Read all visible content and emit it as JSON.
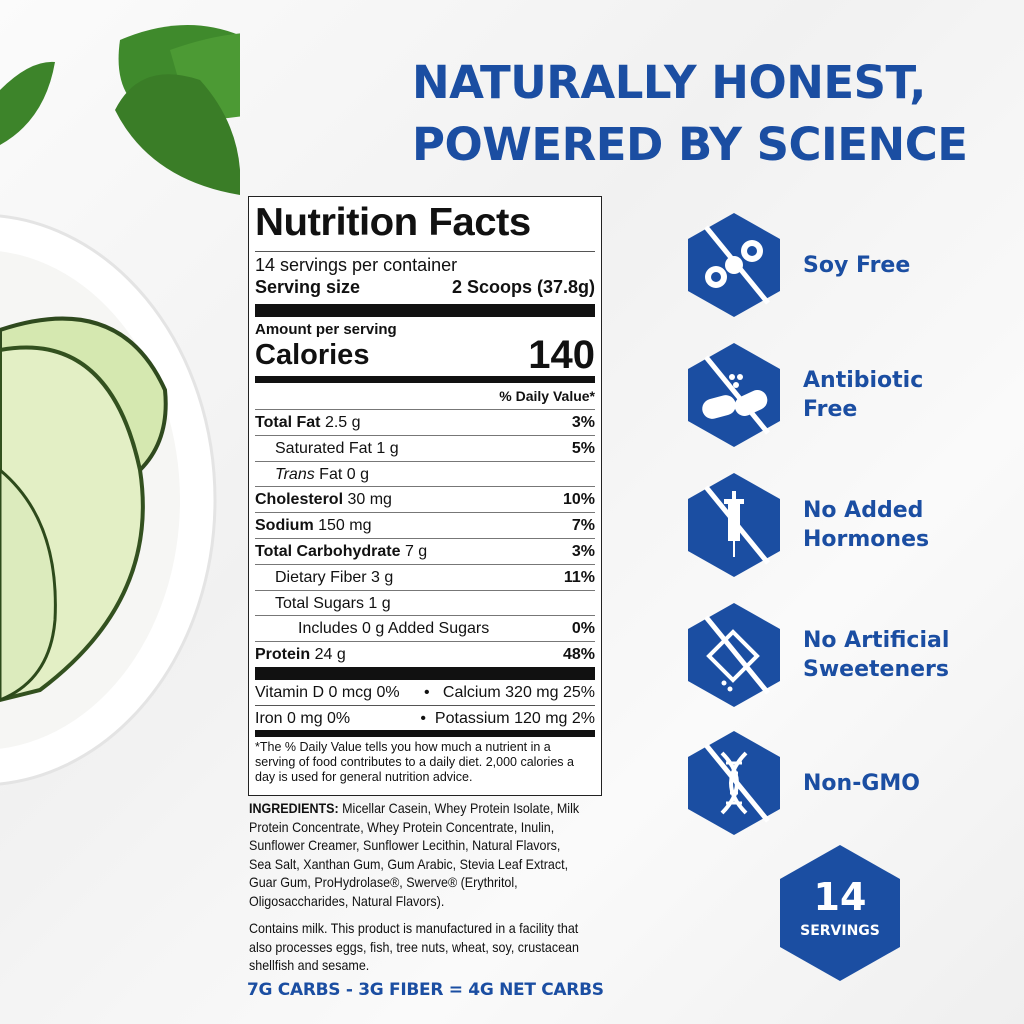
{
  "headline": {
    "line1": "NATURALLY HONEST,",
    "line2": "POWERED BY SCIENCE"
  },
  "colors": {
    "brand_blue": "#1b4ea2"
  },
  "nutrition": {
    "title": "Nutrition Facts",
    "servings_per_container": "14 servings per container",
    "serving_size_label": "Serving size",
    "serving_size_value": "2 Scoops (37.8g)",
    "amount_per_serving": "Amount per serving",
    "calories_label": "Calories",
    "calories_value": "140",
    "dv_header": "% Daily Value*",
    "rows": [
      {
        "name": "Total Fat",
        "amount": "2.5 g",
        "dv": "3%"
      },
      {
        "name": "Saturated Fat",
        "amount": "1 g",
        "dv": "5%"
      },
      {
        "name": "Trans",
        "amount": "Fat 0 g",
        "dv": ""
      },
      {
        "name": "Cholesterol",
        "amount": "30 mg",
        "dv": "10%"
      },
      {
        "name": "Sodium",
        "amount": "150 mg",
        "dv": "7%"
      },
      {
        "name": "Total Carbohydrate",
        "amount": "7 g",
        "dv": "3%"
      },
      {
        "name": "Dietary Fiber",
        "amount": "3 g",
        "dv": "11%"
      },
      {
        "name": "Total Sugars",
        "amount": "1 g",
        "dv": ""
      },
      {
        "name": "Includes 0 g Added Sugars",
        "amount": "",
        "dv": "0%"
      },
      {
        "name": "Protein",
        "amount": "24 g",
        "dv": "48%"
      }
    ],
    "vitamins": [
      {
        "left": "Vitamin D 0 mcg 0%",
        "right": "Calcium 320 mg 25%"
      },
      {
        "left": "Iron 0 mg 0%",
        "right": "Potassium 120 mg 2%"
      }
    ],
    "bullet": "•",
    "footnote": "*The % Daily Value tells you how much a nutrient in a serving of food contributes to a daily diet. 2,000 calories a day is used for general nutrition advice."
  },
  "ingredients": {
    "label": "INGREDIENTS:",
    "text": " Micellar Casein, Whey Protein Isolate, Milk Protein Concentrate, Whey Protein Concentrate, Inulin, Sunflower Creamer, Sunflower Lecithin, Natural Flavors, Sea Salt, Xanthan Gum, Gum Arabic, Stevia Leaf Extract, Guar Gum, ProHydrolase®, Swerve® (Erythritol, Oligosaccharides, Natural Flavors)."
  },
  "allergen": "Contains milk. This product is manufactured in a facility that also processes eggs, fish, tree nuts, wheat, soy, crustacean shellfish and sesame.",
  "net_carbs": "7G CARBS - 3G FIBER = 4G NET CARBS",
  "claims": [
    {
      "label": "Soy Free",
      "icon": "no-soy-icon"
    },
    {
      "label": "Antibiotic Free",
      "icon": "no-antibiotic-icon"
    },
    {
      "label": "No Added Hormones",
      "icon": "no-hormone-icon"
    },
    {
      "label": "No Artificial Sweeteners",
      "icon": "no-sweetener-icon"
    },
    {
      "label": "Non-GMO",
      "icon": "non-gmo-icon"
    }
  ],
  "servings_badge": {
    "number": "14",
    "label": "SERVINGS"
  }
}
